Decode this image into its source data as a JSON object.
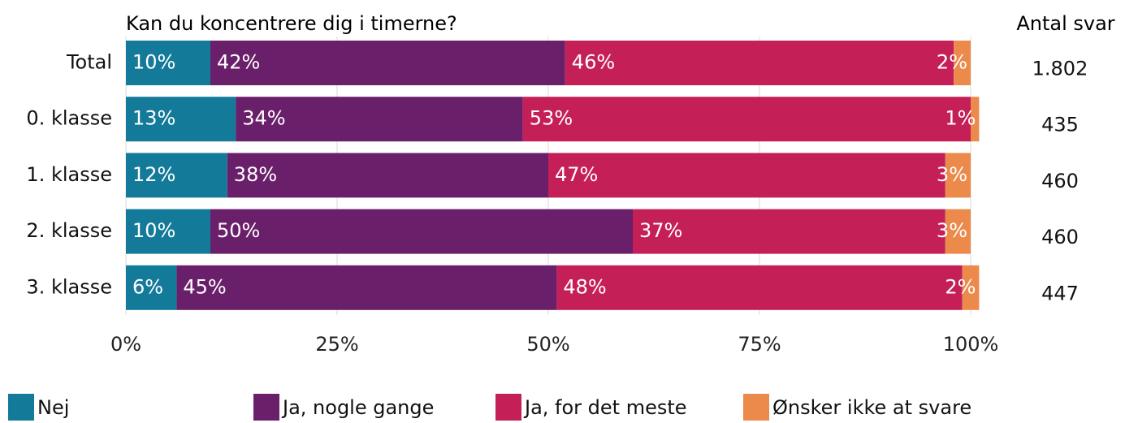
{
  "chart_data": {
    "type": "stacked_bar_horizontal",
    "title": "Kan du koncentrere dig i timerne?",
    "categories": [
      "Total",
      "0. klasse",
      "1. klasse",
      "2. klasse",
      "3. klasse"
    ],
    "series": [
      {
        "name": "Nej",
        "color": "#147a99",
        "values": [
          10,
          13,
          12,
          10,
          6
        ],
        "value_labels": [
          "10%",
          "13%",
          "12%",
          "10%",
          "6%"
        ]
      },
      {
        "name": "Ja, nogle gange",
        "color": "#6a1f6a",
        "values": [
          42,
          34,
          38,
          50,
          45
        ],
        "value_labels": [
          "42%",
          "34%",
          "38%",
          "50%",
          "45%"
        ]
      },
      {
        "name": "Ja, for det meste",
        "color": "#c42057",
        "values": [
          46,
          53,
          47,
          37,
          48
        ],
        "value_labels": [
          "46%",
          "53%",
          "47%",
          "37%",
          "48%"
        ]
      },
      {
        "name": "Ønsker ikke at svare",
        "color": "#ec8a4c",
        "values": [
          2,
          1,
          3,
          3,
          2
        ],
        "value_labels": [
          "2%",
          "1%",
          "3%",
          "3%",
          "2%"
        ]
      }
    ],
    "xlim": [
      0,
      100
    ],
    "xticks": [
      {
        "value": 0,
        "label": "0%"
      },
      {
        "value": 25,
        "label": "25%"
      },
      {
        "value": 50,
        "label": "50%"
      },
      {
        "value": 75,
        "label": "75%"
      },
      {
        "value": 100,
        "label": "100%"
      }
    ],
    "grid": true,
    "counts": {
      "title": "Antal svar",
      "values": [
        1802,
        435,
        460,
        460,
        447
      ],
      "value_labels": [
        "1.802",
        "435",
        "460",
        "460",
        "447"
      ]
    }
  }
}
